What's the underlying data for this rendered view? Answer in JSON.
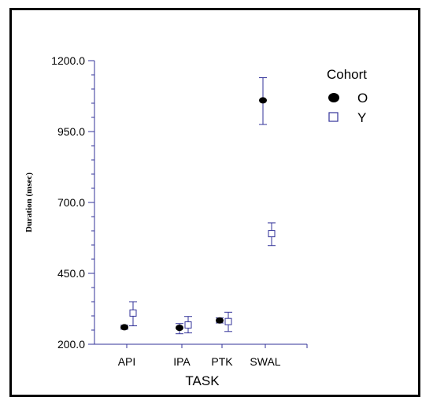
{
  "chart_data": {
    "type": "scatter",
    "xlabel": "TASK",
    "ylabel": "Duration (msec)",
    "categories": [
      "API",
      "IPA",
      "PTK",
      "SWAL"
    ],
    "yticks": [
      "1200.0",
      "950.0",
      "700.0",
      "450.0",
      "200.0"
    ],
    "ylim": [
      200,
      1200
    ],
    "legend": {
      "title": "Cohort",
      "placement": "top-right"
    },
    "series": [
      {
        "name": "O",
        "marker": "filled-circle",
        "color": "#000000",
        "points": [
          {
            "category": "API",
            "value": 260,
            "err_low": 253,
            "err_high": 267
          },
          {
            "category": "IPA",
            "value": 258,
            "err_low": 237,
            "err_high": 273
          },
          {
            "category": "PTK",
            "value": 284,
            "err_low": 275,
            "err_high": 293
          },
          {
            "category": "SWAL",
            "value": 1060,
            "err_low": 975,
            "err_high": 1140
          }
        ]
      },
      {
        "name": "Y",
        "marker": "open-square",
        "color": "#33339a",
        "points": [
          {
            "category": "API",
            "value": 310,
            "err_low": 265,
            "err_high": 350
          },
          {
            "category": "IPA",
            "value": 268,
            "err_low": 240,
            "err_high": 298
          },
          {
            "category": "PTK",
            "value": 280,
            "err_low": 245,
            "err_high": 313
          },
          {
            "category": "SWAL",
            "value": 590,
            "err_low": 548,
            "err_high": 628
          }
        ]
      }
    ]
  }
}
